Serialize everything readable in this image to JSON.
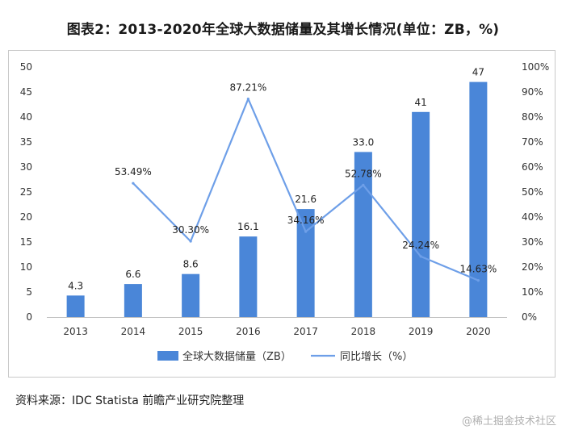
{
  "chart_data": {
    "type": "bar",
    "title": "图表2：2013-2020年全球大数据储量及其增长情况(单位：ZB，%)",
    "categories": [
      "2013",
      "2014",
      "2015",
      "2016",
      "2017",
      "2018",
      "2019",
      "2020"
    ],
    "series": [
      {
        "name": "全球大数据储量（ZB）",
        "type": "bar",
        "axis": "left",
        "values": [
          4.3,
          6.6,
          8.6,
          16.1,
          21.6,
          33.0,
          41,
          47
        ],
        "labels": [
          "4.3",
          "6.6",
          "8.6",
          "16.1",
          "21.6",
          "33.0",
          "41",
          "47"
        ],
        "color": "#4a86d8"
      },
      {
        "name": "同比增长（%）",
        "type": "line",
        "axis": "right",
        "values": [
          null,
          53.49,
          30.3,
          87.21,
          34.16,
          52.78,
          24.24,
          14.63
        ],
        "labels": [
          "",
          "53.49%",
          "30.30%",
          "87.21%",
          "34.16%",
          "52.78%",
          "24.24%",
          "14.63%"
        ],
        "color": "#6e9fe8"
      }
    ],
    "y_left": {
      "min": 0,
      "max": 50,
      "step": 5,
      "ticks": [
        "0",
        "5",
        "10",
        "15",
        "20",
        "25",
        "30",
        "35",
        "40",
        "45",
        "50"
      ]
    },
    "y_right": {
      "min": 0,
      "max": 100,
      "step": 10,
      "ticks": [
        "0%",
        "10%",
        "20%",
        "30%",
        "40%",
        "50%",
        "60%",
        "70%",
        "80%",
        "90%",
        "100%"
      ]
    },
    "legend_position": "bottom",
    "grid": false
  },
  "source_text": "资料来源：IDC Statista 前瞻产业研究院整理",
  "watermark_text": "@稀土掘金技术社区"
}
